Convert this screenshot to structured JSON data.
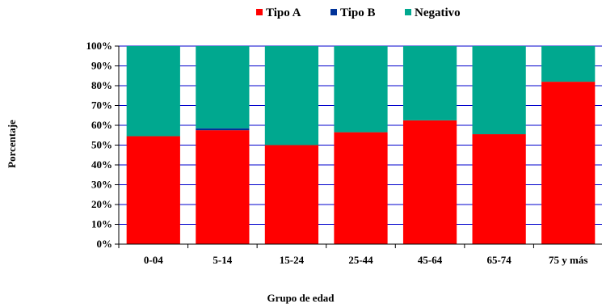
{
  "chart_data": {
    "type": "bar",
    "stacked": true,
    "percent_stacked": true,
    "categories": [
      "0-04",
      "5-14",
      "15-24",
      "25-44",
      "45-64",
      "65-74",
      "75 y más"
    ],
    "series": [
      {
        "name": "Tipo A",
        "color": "#ff0000",
        "values": [
          54.5,
          57.5,
          50.0,
          56.5,
          62.5,
          55.5,
          82.0
        ]
      },
      {
        "name": "Tipo B",
        "color": "#003399",
        "values": [
          0.0,
          1.0,
          0.0,
          0.0,
          0.0,
          0.0,
          0.0
        ]
      },
      {
        "name": "Negativo",
        "color": "#00a88f",
        "values": [
          45.5,
          41.5,
          50.0,
          43.5,
          37.5,
          44.5,
          18.0
        ]
      }
    ],
    "xlabel": "Grupo de edad",
    "ylabel": "Porcentaje",
    "ylim": [
      0,
      100
    ],
    "yticks": [
      "0%",
      "10%",
      "20%",
      "30%",
      "40%",
      "50%",
      "60%",
      "70%",
      "80%",
      "90%",
      "100%"
    ],
    "grid": true,
    "legend_position": "top",
    "plot_background": "#ffffff",
    "gridline_color": "#0000cc"
  }
}
